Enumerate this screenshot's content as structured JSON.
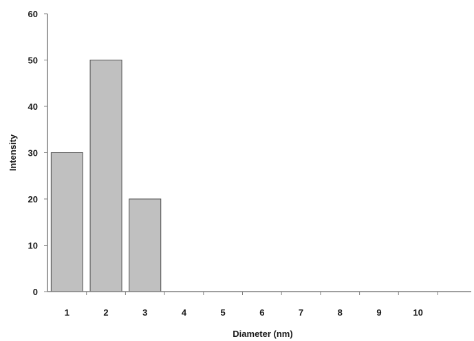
{
  "chart_data": {
    "type": "bar",
    "categories": [
      "1",
      "2",
      "3",
      "4",
      "5",
      "6",
      "7",
      "8",
      "9",
      "10"
    ],
    "values": [
      30,
      50,
      20,
      0,
      0,
      0,
      0,
      0,
      0,
      0
    ],
    "title": "",
    "xlabel": "Diameter (nm)",
    "ylabel": "Intensity",
    "ylim": [
      0,
      60
    ],
    "yticks": [
      "0",
      "10",
      "20",
      "30",
      "40",
      "50",
      "60"
    ],
    "grid": false,
    "legend": "none",
    "colors": {
      "bar_fill": "#c0c0c0",
      "bar_stroke": "#4d4d4d",
      "axis": "#7f7f7f",
      "text": "#1a1a1a"
    }
  }
}
